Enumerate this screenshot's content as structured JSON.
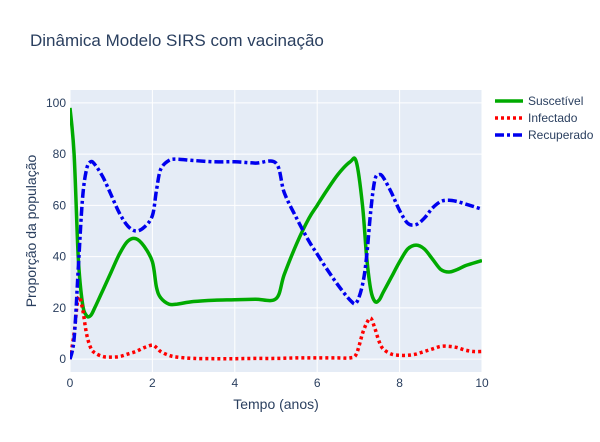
{
  "chart_data": {
    "type": "line",
    "title": "Dinâmica Modelo SIRS com vacinação",
    "xlabel": "Tempo (anos)",
    "ylabel": "Proporção da população",
    "xlim": [
      0,
      10
    ],
    "ylim": [
      -5,
      105
    ],
    "x_ticks": [
      0,
      2,
      4,
      6,
      8,
      10
    ],
    "y_ticks": [
      0,
      20,
      40,
      60,
      80,
      100
    ],
    "grid": true,
    "plot_background": "#e5ecf6",
    "legend_position": "top-right",
    "series": [
      {
        "name": "Suscetível",
        "color": "#00aa00",
        "dash": "solid",
        "x": [
          0,
          0.1,
          0.2,
          0.3,
          0.4,
          0.5,
          0.6,
          0.8,
          1.0,
          1.2,
          1.4,
          1.6,
          1.8,
          2.0,
          2.1,
          2.2,
          2.4,
          2.6,
          3.0,
          3.5,
          4.0,
          4.5,
          5.0,
          5.2,
          5.5,
          5.8,
          6.0,
          6.2,
          6.5,
          6.8,
          6.95,
          7.1,
          7.2,
          7.3,
          7.4,
          7.5,
          7.6,
          7.8,
          8.0,
          8.2,
          8.4,
          8.6,
          8.8,
          9.0,
          9.2,
          9.4,
          9.6,
          9.8,
          10.0
        ],
        "y": [
          98,
          80,
          40,
          22,
          17,
          17,
          20,
          27,
          34,
          41,
          46,
          47,
          44,
          38,
          28,
          24,
          21.5,
          21.5,
          22.5,
          23,
          23.2,
          23.4,
          23.6,
          33,
          45,
          55,
          60,
          65,
          72,
          77,
          77,
          60,
          40,
          27,
          22.5,
          23,
          26,
          32,
          38,
          43,
          44.5,
          43,
          39,
          35,
          34,
          35,
          36.5,
          37.5,
          38.5
        ]
      },
      {
        "name": "Infectado",
        "color": "#ff0000",
        "dash": "dot",
        "x": [
          0,
          0.1,
          0.2,
          0.3,
          0.4,
          0.5,
          0.6,
          0.8,
          1.0,
          1.2,
          1.4,
          1.6,
          1.8,
          2.0,
          2.1,
          2.2,
          2.4,
          2.6,
          3.0,
          3.5,
          4.0,
          4.5,
          5.0,
          5.5,
          6.0,
          6.5,
          6.8,
          6.95,
          7.1,
          7.2,
          7.3,
          7.4,
          7.5,
          7.6,
          7.8,
          8.0,
          8.2,
          8.4,
          8.6,
          8.8,
          9.0,
          9.2,
          9.4,
          9.6,
          9.8,
          10.0
        ],
        "y": [
          0,
          10,
          24,
          20,
          10,
          4.5,
          2.5,
          1,
          0.8,
          1,
          2,
          3,
          4.5,
          5.5,
          4.5,
          3,
          1.5,
          0.8,
          0.3,
          0.2,
          0.2,
          0.3,
          0.3,
          0.5,
          0.5,
          0.5,
          0.5,
          2,
          10,
          14,
          16,
          12,
          7,
          4,
          2,
          1.5,
          1.5,
          2,
          3,
          4,
          5,
          5,
          4.5,
          3.5,
          3,
          3
        ]
      },
      {
        "name": "Recuperado",
        "color": "#0000ee",
        "dash": "dashdot",
        "x": [
          0,
          0.1,
          0.2,
          0.3,
          0.4,
          0.5,
          0.6,
          0.8,
          1.0,
          1.2,
          1.4,
          1.6,
          1.8,
          2.0,
          2.1,
          2.2,
          2.4,
          2.6,
          3.0,
          3.5,
          4.0,
          4.5,
          5.0,
          5.2,
          5.5,
          5.8,
          6.0,
          6.2,
          6.5,
          6.8,
          6.95,
          7.1,
          7.2,
          7.3,
          7.4,
          7.5,
          7.6,
          7.8,
          8.0,
          8.2,
          8.4,
          8.6,
          8.8,
          9.0,
          9.2,
          9.4,
          9.6,
          9.8,
          10.0
        ],
        "y": [
          0,
          8,
          35,
          62,
          74,
          77,
          76,
          71,
          64,
          57,
          52,
          50,
          51.5,
          56,
          66,
          74,
          77.5,
          78,
          77.5,
          77,
          77,
          76.5,
          76.5,
          65,
          55,
          46,
          41,
          36,
          29,
          23,
          22,
          29,
          40,
          58,
          70,
          72,
          71,
          65,
          58,
          53,
          52.5,
          55,
          59,
          61.5,
          62,
          61.5,
          60.5,
          59.5,
          58.5
        ]
      }
    ]
  }
}
